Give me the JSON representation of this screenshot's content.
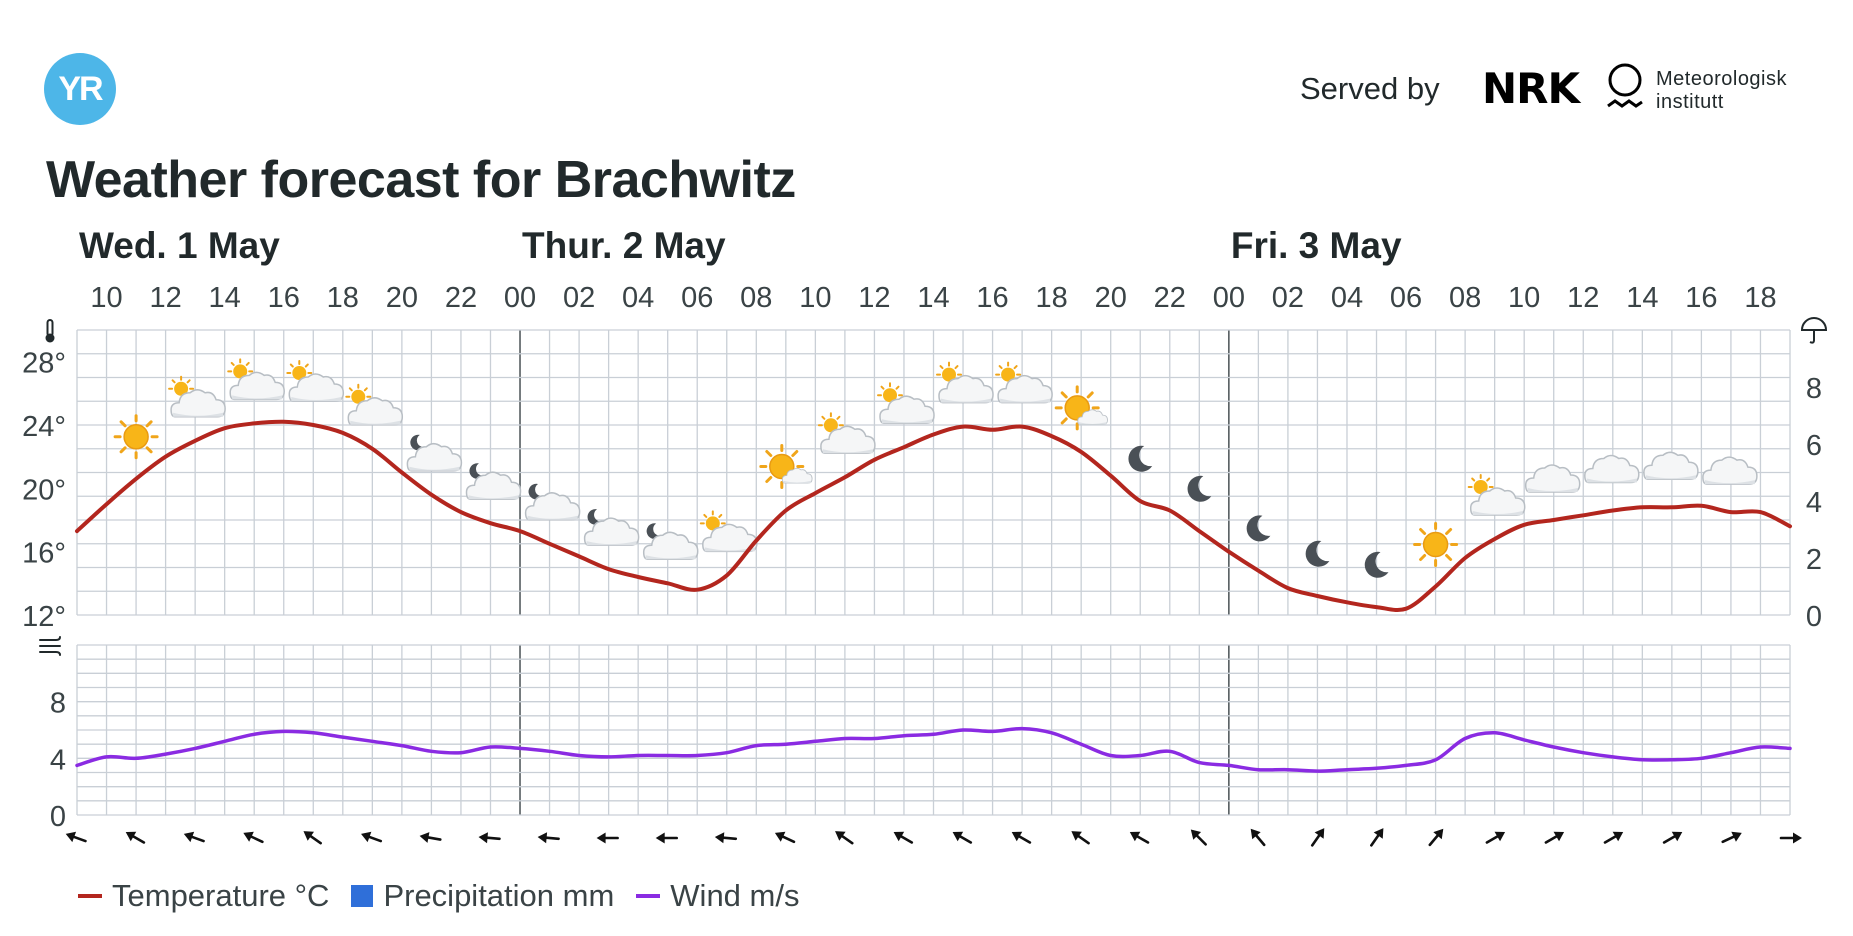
{
  "header": {
    "logo_text": "YR",
    "served_by": "Served by",
    "nrk_logo": "NRK",
    "met_line1": "Meteorologisk",
    "met_line2": "institutt",
    "title": "Weather forecast for Brachwitz"
  },
  "colors": {
    "temperature": "#b3261e",
    "wind": "#8a2be2",
    "precipitation": "#2f6fd9",
    "grid": "#c9cfd6",
    "day_divider": "#555c60"
  },
  "legend": [
    {
      "label": "Temperature °C",
      "kind": "line",
      "color": "#b3261e"
    },
    {
      "label": "Precipitation mm",
      "kind": "box",
      "color": "#2f6fd9"
    },
    {
      "label": "Wind m/s",
      "kind": "line",
      "color": "#8a2be2"
    }
  ],
  "chart_data": {
    "type": "line",
    "title": "Weather forecast for Brachwitz",
    "days": [
      {
        "label": "Wed. 1 May",
        "hour": 9
      },
      {
        "label": "Thur. 2 May",
        "hour": 24
      },
      {
        "label": "Fri. 3 May",
        "hour": 48
      }
    ],
    "x_start_hour": 9,
    "x_end_hour": 67,
    "hour_tick_labels": [
      "10",
      "12",
      "14",
      "16",
      "18",
      "20",
      "22",
      "00",
      "02",
      "04",
      "06",
      "08",
      "10",
      "12",
      "14",
      "16",
      "18",
      "20",
      "22",
      "00",
      "02",
      "04",
      "06",
      "08",
      "10",
      "12",
      "14",
      "16",
      "18"
    ],
    "hour_tick_positions": [
      10,
      12,
      14,
      16,
      18,
      20,
      22,
      24,
      26,
      28,
      30,
      32,
      34,
      36,
      38,
      40,
      42,
      44,
      46,
      48,
      50,
      52,
      54,
      56,
      58,
      60,
      62,
      64,
      66
    ],
    "temperature": {
      "name": "Temperature °C",
      "ylim": [
        12,
        30
      ],
      "y_tick_labels": [
        "12°",
        "16°",
        "20°",
        "24°",
        "28°"
      ],
      "y_tick_values": [
        12,
        16,
        20,
        24,
        28
      ],
      "x": [
        9,
        10,
        11,
        12,
        13,
        14,
        15,
        16,
        17,
        18,
        19,
        20,
        21,
        22,
        23,
        24,
        25,
        26,
        27,
        28,
        29,
        30,
        31,
        32,
        33,
        34,
        35,
        36,
        37,
        38,
        39,
        40,
        41,
        42,
        43,
        44,
        45,
        46,
        47,
        48,
        49,
        50,
        51,
        52,
        53,
        54,
        55,
        56,
        57,
        58,
        59,
        60,
        61,
        62,
        63,
        64,
        65,
        66,
        67
      ],
      "values": [
        17.3,
        19.0,
        20.6,
        22.0,
        23.0,
        23.8,
        24.1,
        24.2,
        24.0,
        23.5,
        22.5,
        21.0,
        19.6,
        18.5,
        17.8,
        17.3,
        16.5,
        15.7,
        14.9,
        14.4,
        14.0,
        13.6,
        14.5,
        16.7,
        18.6,
        19.7,
        20.7,
        21.8,
        22.6,
        23.4,
        23.9,
        23.7,
        23.9,
        23.3,
        22.3,
        20.8,
        19.2,
        18.6,
        17.3,
        16.0,
        14.8,
        13.7,
        13.2,
        12.8,
        12.5,
        12.4,
        13.8,
        15.6,
        16.8,
        17.7,
        18.0,
        18.3,
        18.6,
        18.8,
        18.8,
        18.9,
        18.5,
        18.5,
        17.6
      ]
    },
    "precipitation": {
      "name": "Precipitation mm",
      "ylim": [
        0,
        10
      ],
      "y_tick_labels": [
        "0",
        "2",
        "4",
        "6",
        "8"
      ],
      "y_tick_values": [
        0,
        2,
        4,
        6,
        8
      ],
      "values": []
    },
    "wind": {
      "name": "Wind m/s",
      "ylim": [
        0,
        12
      ],
      "y_tick_labels": [
        "0",
        "4",
        "8"
      ],
      "y_tick_values": [
        0,
        4,
        8
      ],
      "x": [
        9,
        10,
        11,
        12,
        13,
        14,
        15,
        16,
        17,
        18,
        19,
        20,
        21,
        22,
        23,
        24,
        25,
        26,
        27,
        28,
        29,
        30,
        31,
        32,
        33,
        34,
        35,
        36,
        37,
        38,
        39,
        40,
        41,
        42,
        43,
        44,
        45,
        46,
        47,
        48,
        49,
        50,
        51,
        52,
        53,
        54,
        55,
        56,
        57,
        58,
        59,
        60,
        61,
        62,
        63,
        64,
        65,
        66,
        67
      ],
      "values": [
        3.5,
        4.1,
        4.0,
        4.3,
        4.7,
        5.2,
        5.7,
        5.9,
        5.8,
        5.5,
        5.2,
        4.9,
        4.5,
        4.4,
        4.8,
        4.7,
        4.5,
        4.2,
        4.1,
        4.2,
        4.2,
        4.2,
        4.4,
        4.9,
        5.0,
        5.2,
        5.4,
        5.4,
        5.6,
        5.7,
        6.0,
        5.9,
        6.1,
        5.8,
        5.0,
        4.2,
        4.2,
        4.5,
        3.7,
        3.5,
        3.2,
        3.2,
        3.1,
        3.2,
        3.3,
        3.5,
        3.9,
        5.4,
        5.8,
        5.3,
        4.8,
        4.4,
        4.1,
        3.9,
        3.9,
        4.0,
        4.4,
        4.8,
        4.7
      ]
    },
    "weather_symbols": [
      {
        "hour": 11,
        "icon": "sun-icon"
      },
      {
        "hour": 13,
        "icon": "partly-cloudy-day-icon"
      },
      {
        "hour": 15,
        "icon": "partly-cloudy-day-icon"
      },
      {
        "hour": 17,
        "icon": "partly-cloudy-day-icon"
      },
      {
        "hour": 19,
        "icon": "partly-cloudy-day-icon"
      },
      {
        "hour": 21,
        "icon": "partly-cloudy-night-icon"
      },
      {
        "hour": 23,
        "icon": "partly-cloudy-night-icon"
      },
      {
        "hour": 25,
        "icon": "partly-cloudy-night-icon"
      },
      {
        "hour": 27,
        "icon": "partly-cloudy-night-icon"
      },
      {
        "hour": 29,
        "icon": "partly-cloudy-night-icon"
      },
      {
        "hour": 31,
        "icon": "partly-cloudy-day-icon"
      },
      {
        "hour": 33,
        "icon": "fair-day-icon"
      },
      {
        "hour": 35,
        "icon": "partly-cloudy-day-icon"
      },
      {
        "hour": 37,
        "icon": "partly-cloudy-day-icon"
      },
      {
        "hour": 39,
        "icon": "partly-cloudy-day-icon"
      },
      {
        "hour": 41,
        "icon": "partly-cloudy-day-icon"
      },
      {
        "hour": 43,
        "icon": "fair-day-icon"
      },
      {
        "hour": 45,
        "icon": "moon-icon"
      },
      {
        "hour": 47,
        "icon": "moon-icon"
      },
      {
        "hour": 49,
        "icon": "moon-icon"
      },
      {
        "hour": 51,
        "icon": "moon-icon"
      },
      {
        "hour": 53,
        "icon": "moon-icon"
      },
      {
        "hour": 55,
        "icon": "sun-icon"
      },
      {
        "hour": 57,
        "icon": "partly-cloudy-day-icon"
      },
      {
        "hour": 59,
        "icon": "cloud-icon"
      },
      {
        "hour": 61,
        "icon": "cloud-icon"
      },
      {
        "hour": 63,
        "icon": "cloud-icon"
      },
      {
        "hour": 65,
        "icon": "cloud-icon"
      }
    ],
    "wind_directions_deg": [
      {
        "hour": 9,
        "deg": 290
      },
      {
        "hour": 11,
        "deg": 300
      },
      {
        "hour": 13,
        "deg": 290
      },
      {
        "hour": 15,
        "deg": 295
      },
      {
        "hour": 17,
        "deg": 305
      },
      {
        "hour": 19,
        "deg": 290
      },
      {
        "hour": 21,
        "deg": 280
      },
      {
        "hour": 23,
        "deg": 275
      },
      {
        "hour": 25,
        "deg": 275
      },
      {
        "hour": 27,
        "deg": 270
      },
      {
        "hour": 29,
        "deg": 270
      },
      {
        "hour": 31,
        "deg": 275
      },
      {
        "hour": 33,
        "deg": 295
      },
      {
        "hour": 35,
        "deg": 305
      },
      {
        "hour": 37,
        "deg": 300
      },
      {
        "hour": 39,
        "deg": 300
      },
      {
        "hour": 41,
        "deg": 300
      },
      {
        "hour": 43,
        "deg": 305
      },
      {
        "hour": 45,
        "deg": 300
      },
      {
        "hour": 47,
        "deg": 315
      },
      {
        "hour": 49,
        "deg": 320
      },
      {
        "hour": 51,
        "deg": 35
      },
      {
        "hour": 53,
        "deg": 35
      },
      {
        "hour": 55,
        "deg": 40
      },
      {
        "hour": 57,
        "deg": 60
      },
      {
        "hour": 59,
        "deg": 60
      },
      {
        "hour": 61,
        "deg": 60
      },
      {
        "hour": 63,
        "deg": 60
      },
      {
        "hour": 65,
        "deg": 65
      },
      {
        "hour": 67,
        "deg": 90
      }
    ],
    "grid": true
  }
}
